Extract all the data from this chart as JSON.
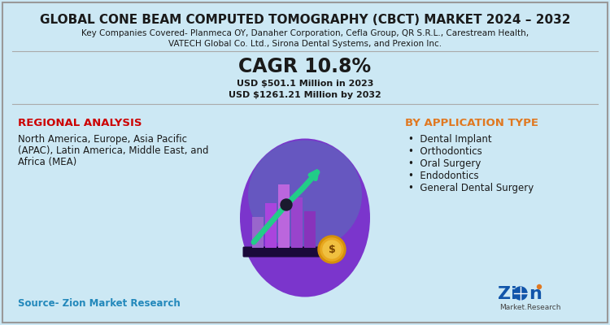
{
  "title": "GLOBAL CONE BEAM COMPUTED TOMOGRAPHY (CBCT) MARKET 2024 – 2032",
  "subtitle1": "Key Companies Covered- Planmeca OY, Danaher Corporation, Cefla Group, QR S.R.L., Carestream Health,",
  "subtitle2": "VATECH Global Co. Ltd., Sirona Dental Systems, and Prexion Inc.",
  "cagr_label": "CAGR 10.8%",
  "value1": "USD $501.1 Million in 2023",
  "value2": "USD $1261.21 Million by 2032",
  "regional_title": "REGIONAL ANALYSIS",
  "regional_text1": "North America, Europe, Asia Pacific",
  "regional_text2": "(APAC), Latin America, Middle East, and",
  "regional_text3": "Africa (MEA)",
  "app_title": "BY APPLICATION TYPE",
  "app_items": [
    "Dental Implant",
    "Orthodontics",
    "Oral Surgery",
    "Endodontics",
    "General Dental Surgery"
  ],
  "source_text": "Source- Zion Market Research",
  "bg_color": "#cce8f4",
  "title_color": "#1a1a1a",
  "cagr_color": "#1a1a1a",
  "regional_title_color": "#cc0000",
  "app_title_color": "#e07820",
  "source_color": "#2288bb",
  "border_color": "#999999"
}
